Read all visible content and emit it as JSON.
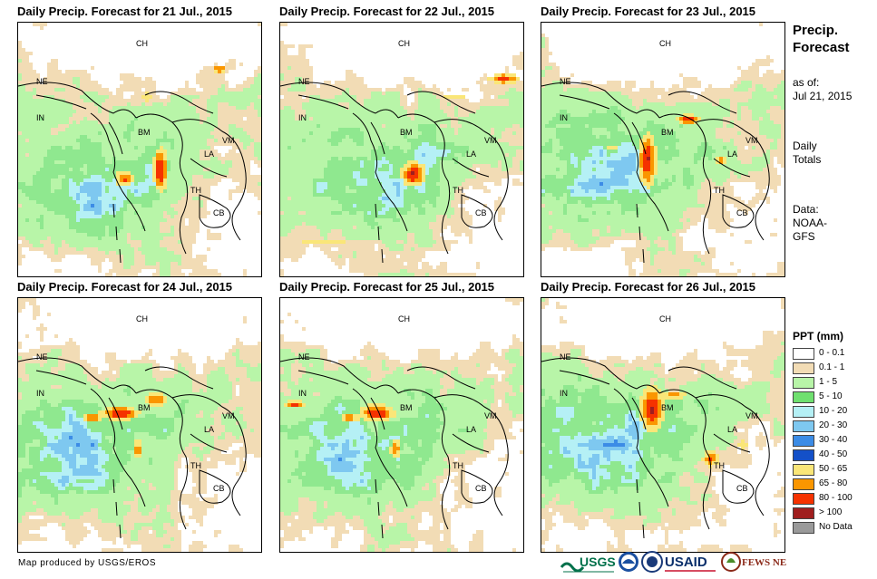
{
  "panels": [
    {
      "title": "Daily Precip. Forecast for 21 Jul., 2015"
    },
    {
      "title": "Daily Precip. Forecast for 22 Jul., 2015"
    },
    {
      "title": "Daily Precip. Forecast for 23 Jul., 2015"
    },
    {
      "title": "Daily Precip. Forecast for 24 Jul., 2015"
    },
    {
      "title": "Daily Precip. Forecast for 25 Jul., 2015"
    },
    {
      "title": "Daily Precip. Forecast for 26 Jul., 2015"
    }
  ],
  "country_labels": {
    "ch": "CH",
    "ne": "NE",
    "in": "IN",
    "bm": "BM",
    "la": "LA",
    "vm": "VM",
    "th": "TH",
    "cb": "CB"
  },
  "sidebar": {
    "title_line1": "Precip.",
    "title_line2": "Forecast",
    "asof_line1": "as of:",
    "asof_line2": "Jul 21, 2015",
    "totals_line1": "Daily",
    "totals_line2": "Totals",
    "data_line1": "Data:",
    "data_line2": "NOAA-",
    "data_line3": "GFS"
  },
  "legend": {
    "title": "PPT (mm)",
    "items": [
      {
        "label": "0 - 0.1",
        "color": "#ffffff"
      },
      {
        "label": "0.1 - 1",
        "color": "#f2dcb5"
      },
      {
        "label": "1 - 5",
        "color": "#b8f5a8"
      },
      {
        "label": "5 - 10",
        "color": "#6fe06f"
      },
      {
        "label": "10 - 20",
        "color": "#b5f0f5"
      },
      {
        "label": "20 - 30",
        "color": "#7ec8f0"
      },
      {
        "label": "30 - 40",
        "color": "#3c8ce6"
      },
      {
        "label": "40 - 50",
        "color": "#1450c8"
      },
      {
        "label": "50 - 65",
        "color": "#fae678"
      },
      {
        "label": "65 - 80",
        "color": "#fa9600"
      },
      {
        "label": "80 - 100",
        "color": "#f53200"
      },
      {
        "label": "> 100",
        "color": "#a01e1e"
      },
      {
        "label": "No Data",
        "color": "#9a9a9a"
      }
    ]
  },
  "credit": "Map produced by USGS/EROS",
  "logos": {
    "usgs": "USGS",
    "usaid": "USAID",
    "fewsnet": "FEWS NET"
  }
}
